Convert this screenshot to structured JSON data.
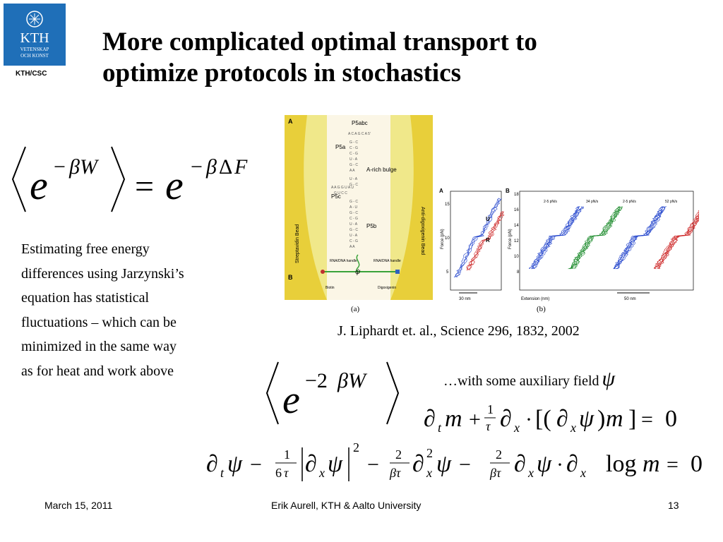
{
  "header": {
    "logo_text": [
      "KTH",
      "VETENSKAP",
      "OCH KONST"
    ],
    "org_label": "KTH/CSC",
    "title": [
      "More complicated optimal transport to",
      "optimize protocols in stochastics"
    ]
  },
  "body": {
    "paragraph": [
      "Estimating free energy",
      "differences using Jarzynski’s",
      "equation has statistical",
      "fluctuations – which can be",
      "minimized in the same way",
      "as for heat and work above"
    ],
    "citation": "J. Liphardt et. al., Science 296, 1832, 2002",
    "aux_text": "…with some auxiliary field"
  },
  "figure": {
    "panel_a_labels": {
      "top": "A",
      "bottom": "B",
      "p5abc": "P5abc",
      "p5a": "P5a",
      "p5c": "P5c",
      "p5b": "P5b",
      "bulge": "A-rich bulge",
      "left_bead": "Streptavidin Bead",
      "right_bead": "Anti-digoxigenin Bead",
      "handle_left": "RNA/DNA handle",
      "handle_right": "RNA/DNA handle",
      "biotin": "Biotin",
      "digoxigenin": "Digoxigenin"
    },
    "panel_b": {
      "label_a": "A",
      "label_b": "B",
      "ylabel": "Force (pN)",
      "xlabel": "Extension (nm)",
      "scale_a": "30 nm",
      "scale_b": "50 nm",
      "marker_u": "U",
      "marker_r": "R",
      "rates": [
        "2-5 pN/s",
        "34 pN/s",
        "2-5 pN/s",
        "52 pN/s"
      ],
      "ticks_a": [
        "15",
        "10",
        "5"
      ],
      "ticks_b": [
        "18",
        "16",
        "14",
        "12",
        "10",
        "8"
      ],
      "colors": {
        "unfold": "#2244cc",
        "refold": "#cc2222",
        "green": "#1a8a2a"
      }
    },
    "caption_a": "(a)",
    "caption_b": "(b)"
  },
  "footer": {
    "date": "March 15, 2011",
    "author": "Erik Aurell, KTH & Aalto University",
    "page": "13"
  }
}
